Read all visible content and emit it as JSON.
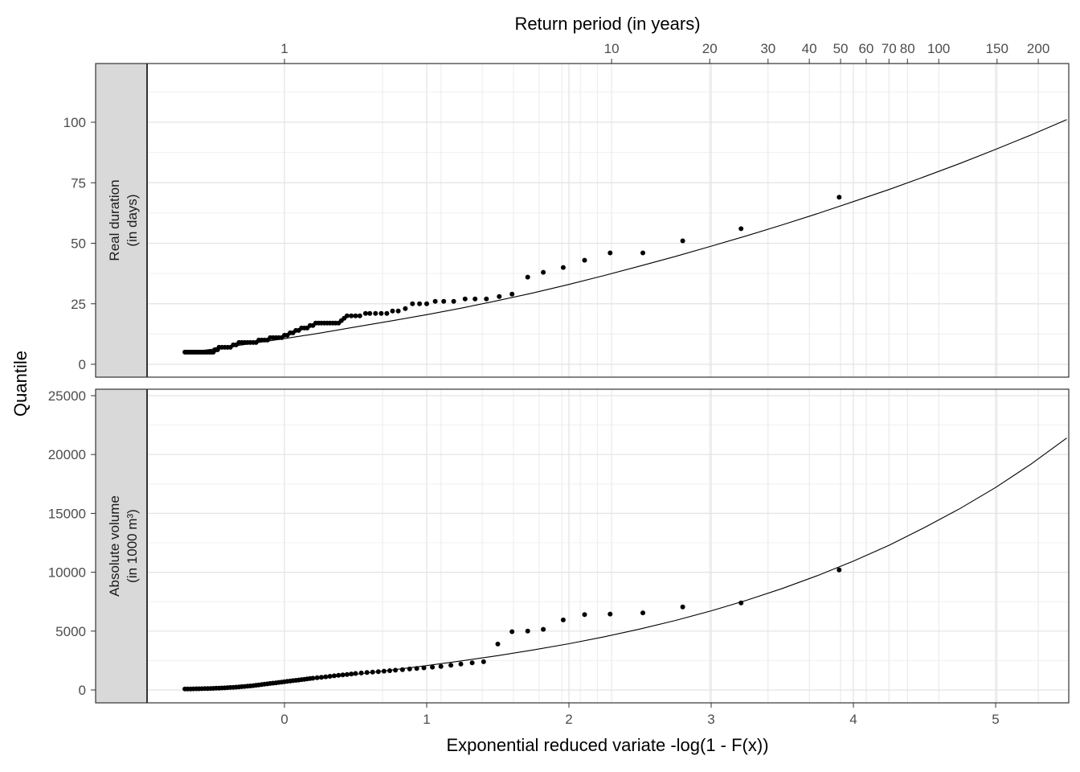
{
  "chart_data": {
    "type": "scatter",
    "xlabel": "Exponential reduced variate -log(1 - F(x))",
    "ylabel": "Quantile",
    "x2label": "Return period (in years)",
    "xlim": [
      -1.32,
      5.5
    ],
    "x_ticks": [
      0,
      1,
      2,
      3,
      4,
      5
    ],
    "x2_ticks": [
      {
        "label": "1",
        "x": 0
      },
      {
        "label": "10",
        "x": 2.3
      },
      {
        "label": "20",
        "x": 2.99
      },
      {
        "label": "30",
        "x": 3.4
      },
      {
        "label": "40",
        "x": 3.69
      },
      {
        "label": "50",
        "x": 3.91
      },
      {
        "label": "60",
        "x": 4.09
      },
      {
        "label": "70",
        "x": 4.25
      },
      {
        "label": "80",
        "x": 4.38
      },
      {
        "label": "100",
        "x": 4.6
      },
      {
        "label": "150",
        "x": 5.01
      },
      {
        "label": "200",
        "x": 5.3
      }
    ],
    "x2_minor": [
      0.69,
      1.1,
      1.39,
      1.61,
      1.79,
      1.95,
      2.08,
      2.2
    ],
    "grid": true,
    "panels": [
      {
        "strip": [
          "Real duration",
          "(in days)"
        ],
        "ylim": [
          -5,
          120
        ],
        "y_ticks": [
          0,
          25,
          50,
          75,
          100
        ],
        "points": [
          [
            -0.7,
            5
          ],
          [
            -0.69,
            5
          ],
          [
            -0.68,
            5
          ],
          [
            -0.67,
            5
          ],
          [
            -0.66,
            5
          ],
          [
            -0.65,
            5
          ],
          [
            -0.64,
            5
          ],
          [
            -0.63,
            5
          ],
          [
            -0.62,
            5
          ],
          [
            -0.61,
            5
          ],
          [
            -0.6,
            5
          ],
          [
            -0.59,
            5
          ],
          [
            -0.58,
            5
          ],
          [
            -0.57,
            5
          ],
          [
            -0.56,
            5
          ],
          [
            -0.55,
            5
          ],
          [
            -0.54,
            5
          ],
          [
            -0.53,
            5
          ],
          [
            -0.52,
            5
          ],
          [
            -0.51,
            5
          ],
          [
            -0.5,
            5
          ],
          [
            -0.49,
            6
          ],
          [
            -0.48,
            6
          ],
          [
            -0.47,
            6
          ],
          [
            -0.46,
            7
          ],
          [
            -0.44,
            7
          ],
          [
            -0.42,
            7
          ],
          [
            -0.4,
            7
          ],
          [
            -0.38,
            7
          ],
          [
            -0.36,
            8
          ],
          [
            -0.34,
            8
          ],
          [
            -0.32,
            9
          ],
          [
            -0.3,
            9
          ],
          [
            -0.28,
            9
          ],
          [
            -0.26,
            9
          ],
          [
            -0.24,
            9
          ],
          [
            -0.22,
            9
          ],
          [
            -0.2,
            9
          ],
          [
            -0.18,
            10
          ],
          [
            -0.16,
            10
          ],
          [
            -0.14,
            10
          ],
          [
            -0.12,
            10
          ],
          [
            -0.1,
            11
          ],
          [
            -0.08,
            11
          ],
          [
            -0.06,
            11
          ],
          [
            -0.04,
            11
          ],
          [
            -0.02,
            11
          ],
          [
            0.0,
            12
          ],
          [
            0.02,
            12
          ],
          [
            0.04,
            13
          ],
          [
            0.06,
            13
          ],
          [
            0.08,
            14
          ],
          [
            0.1,
            14
          ],
          [
            0.12,
            15
          ],
          [
            0.14,
            15
          ],
          [
            0.16,
            15
          ],
          [
            0.18,
            16
          ],
          [
            0.2,
            16
          ],
          [
            0.22,
            17
          ],
          [
            0.24,
            17
          ],
          [
            0.26,
            17
          ],
          [
            0.28,
            17
          ],
          [
            0.3,
            17
          ],
          [
            0.32,
            17
          ],
          [
            0.34,
            17
          ],
          [
            0.36,
            17
          ],
          [
            0.38,
            17
          ],
          [
            0.4,
            18
          ],
          [
            0.42,
            19
          ],
          [
            0.44,
            20
          ],
          [
            0.47,
            20
          ],
          [
            0.5,
            20
          ],
          [
            0.53,
            20
          ],
          [
            0.57,
            21
          ],
          [
            0.6,
            21
          ],
          [
            0.64,
            21
          ],
          [
            0.68,
            21
          ],
          [
            0.72,
            21
          ],
          [
            0.76,
            22
          ],
          [
            0.8,
            22
          ],
          [
            0.85,
            23
          ],
          [
            0.9,
            25
          ],
          [
            0.95,
            25
          ],
          [
            1.0,
            25
          ],
          [
            1.06,
            26
          ],
          [
            1.12,
            26
          ],
          [
            1.19,
            26
          ],
          [
            1.27,
            27
          ],
          [
            1.34,
            27
          ],
          [
            1.42,
            27
          ],
          [
            1.51,
            28
          ],
          [
            1.6,
            29
          ],
          [
            1.71,
            36
          ],
          [
            1.82,
            38
          ],
          [
            1.96,
            40
          ],
          [
            2.11,
            43
          ],
          [
            2.29,
            46
          ],
          [
            2.52,
            46
          ],
          [
            2.8,
            51
          ],
          [
            3.21,
            56
          ],
          [
            3.9,
            69
          ]
        ],
        "curve": [
          [
            -0.7,
            4.8
          ],
          [
            -0.5,
            6.3
          ],
          [
            -0.25,
            8.4
          ],
          [
            0.0,
            10.6
          ],
          [
            0.25,
            12.9
          ],
          [
            0.5,
            15.4
          ],
          [
            0.75,
            17.9
          ],
          [
            1.0,
            20.5
          ],
          [
            1.25,
            23.3
          ],
          [
            1.5,
            26.3
          ],
          [
            1.75,
            29.5
          ],
          [
            2.0,
            33.0
          ],
          [
            2.25,
            36.7
          ],
          [
            2.5,
            40.6
          ],
          [
            2.75,
            44.6
          ],
          [
            3.0,
            48.8
          ],
          [
            3.25,
            53.1
          ],
          [
            3.5,
            57.6
          ],
          [
            3.75,
            62.3
          ],
          [
            4.0,
            67.2
          ],
          [
            4.25,
            72.2
          ],
          [
            4.5,
            77.5
          ],
          [
            4.75,
            83.0
          ],
          [
            5.0,
            88.8
          ],
          [
            5.25,
            94.8
          ],
          [
            5.5,
            101.1
          ]
        ]
      },
      {
        "strip": [
          "Absolute volume",
          "(in 1000 m³)"
        ],
        "ylim": [
          -1100,
          25500
        ],
        "y_ticks": [
          0,
          5000,
          10000,
          15000,
          20000,
          25000
        ],
        "points": [
          [
            -0.7,
            80
          ],
          [
            -0.68,
            85
          ],
          [
            -0.66,
            90
          ],
          [
            -0.64,
            95
          ],
          [
            -0.62,
            100
          ],
          [
            -0.6,
            105
          ],
          [
            -0.58,
            110
          ],
          [
            -0.56,
            115
          ],
          [
            -0.54,
            120
          ],
          [
            -0.52,
            130
          ],
          [
            -0.5,
            140
          ],
          [
            -0.48,
            150
          ],
          [
            -0.46,
            160
          ],
          [
            -0.44,
            170
          ],
          [
            -0.42,
            180
          ],
          [
            -0.4,
            195
          ],
          [
            -0.38,
            210
          ],
          [
            -0.36,
            225
          ],
          [
            -0.34,
            240
          ],
          [
            -0.32,
            260
          ],
          [
            -0.3,
            280
          ],
          [
            -0.28,
            300
          ],
          [
            -0.26,
            320
          ],
          [
            -0.24,
            340
          ],
          [
            -0.22,
            370
          ],
          [
            -0.2,
            400
          ],
          [
            -0.18,
            430
          ],
          [
            -0.16,
            460
          ],
          [
            -0.14,
            490
          ],
          [
            -0.12,
            520
          ],
          [
            -0.1,
            550
          ],
          [
            -0.08,
            580
          ],
          [
            -0.06,
            610
          ],
          [
            -0.04,
            640
          ],
          [
            -0.02,
            670
          ],
          [
            0.0,
            700
          ],
          [
            0.02,
            730
          ],
          [
            0.04,
            760
          ],
          [
            0.06,
            790
          ],
          [
            0.08,
            820
          ],
          [
            0.1,
            850
          ],
          [
            0.12,
            880
          ],
          [
            0.14,
            910
          ],
          [
            0.16,
            940
          ],
          [
            0.18,
            970
          ],
          [
            0.2,
            1000
          ],
          [
            0.23,
            1040
          ],
          [
            0.26,
            1080
          ],
          [
            0.29,
            1120
          ],
          [
            0.32,
            1160
          ],
          [
            0.35,
            1200
          ],
          [
            0.38,
            1240
          ],
          [
            0.41,
            1280
          ],
          [
            0.44,
            1320
          ],
          [
            0.47,
            1360
          ],
          [
            0.5,
            1400
          ],
          [
            0.54,
            1440
          ],
          [
            0.58,
            1480
          ],
          [
            0.62,
            1520
          ],
          [
            0.66,
            1560
          ],
          [
            0.7,
            1600
          ],
          [
            0.74,
            1640
          ],
          [
            0.78,
            1680
          ],
          [
            0.83,
            1730
          ],
          [
            0.88,
            1780
          ],
          [
            0.93,
            1830
          ],
          [
            0.98,
            1880
          ],
          [
            1.04,
            1940
          ],
          [
            1.1,
            2000
          ],
          [
            1.17,
            2100
          ],
          [
            1.24,
            2200
          ],
          [
            1.32,
            2300
          ],
          [
            1.4,
            2400
          ],
          [
            1.5,
            3900
          ],
          [
            1.6,
            4950
          ],
          [
            1.71,
            5000
          ],
          [
            1.82,
            5150
          ],
          [
            1.96,
            5950
          ],
          [
            2.11,
            6400
          ],
          [
            2.29,
            6450
          ],
          [
            2.52,
            6550
          ],
          [
            2.8,
            7050
          ],
          [
            3.21,
            7400
          ],
          [
            3.9,
            10200
          ]
        ],
        "curve": [
          [
            -0.7,
            80
          ],
          [
            -0.5,
            150
          ],
          [
            -0.25,
            330
          ],
          [
            0.0,
            650
          ],
          [
            0.25,
            980
          ],
          [
            0.5,
            1330
          ],
          [
            0.75,
            1690
          ],
          [
            1.0,
            2070
          ],
          [
            1.25,
            2480
          ],
          [
            1.5,
            2920
          ],
          [
            1.75,
            3400
          ],
          [
            2.0,
            3930
          ],
          [
            2.25,
            4520
          ],
          [
            2.5,
            5180
          ],
          [
            2.75,
            5910
          ],
          [
            3.0,
            6720
          ],
          [
            3.25,
            7620
          ],
          [
            3.5,
            8620
          ],
          [
            3.75,
            9730
          ],
          [
            4.0,
            10950
          ],
          [
            4.25,
            12290
          ],
          [
            4.5,
            13800
          ],
          [
            4.75,
            15420
          ],
          [
            5.0,
            17200
          ],
          [
            5.25,
            19200
          ],
          [
            5.5,
            21400
          ]
        ]
      }
    ]
  }
}
